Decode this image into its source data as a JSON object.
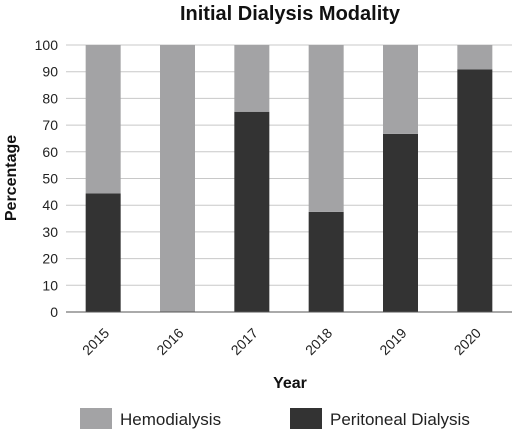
{
  "chart_data": {
    "type": "bar",
    "stacked": true,
    "title": "Initial Dialysis Modality",
    "xlabel": "Year",
    "ylabel": "Percentage",
    "ylim": [
      0,
      100
    ],
    "yticks": [
      0,
      10,
      20,
      30,
      40,
      50,
      60,
      70,
      80,
      90,
      100
    ],
    "grid": "horizontal",
    "legend_position": "bottom",
    "categories": [
      "2015",
      "2016",
      "2017",
      "2018",
      "2019",
      "2020"
    ],
    "series": [
      {
        "name": "Peritoneal Dialysis",
        "color": "#333333",
        "values": [
          44.4,
          0,
          75,
          37.5,
          66.7,
          90.9
        ]
      },
      {
        "name": "Hemodialysis",
        "color": "#a3a3a5",
        "values": [
          55.6,
          100,
          25,
          62.5,
          33.3,
          9.1
        ]
      }
    ],
    "legend": [
      {
        "name": "Hemodialysis",
        "color": "#a3a3a5"
      },
      {
        "name": "Peritoneal Dialysis",
        "color": "#333333"
      }
    ]
  }
}
